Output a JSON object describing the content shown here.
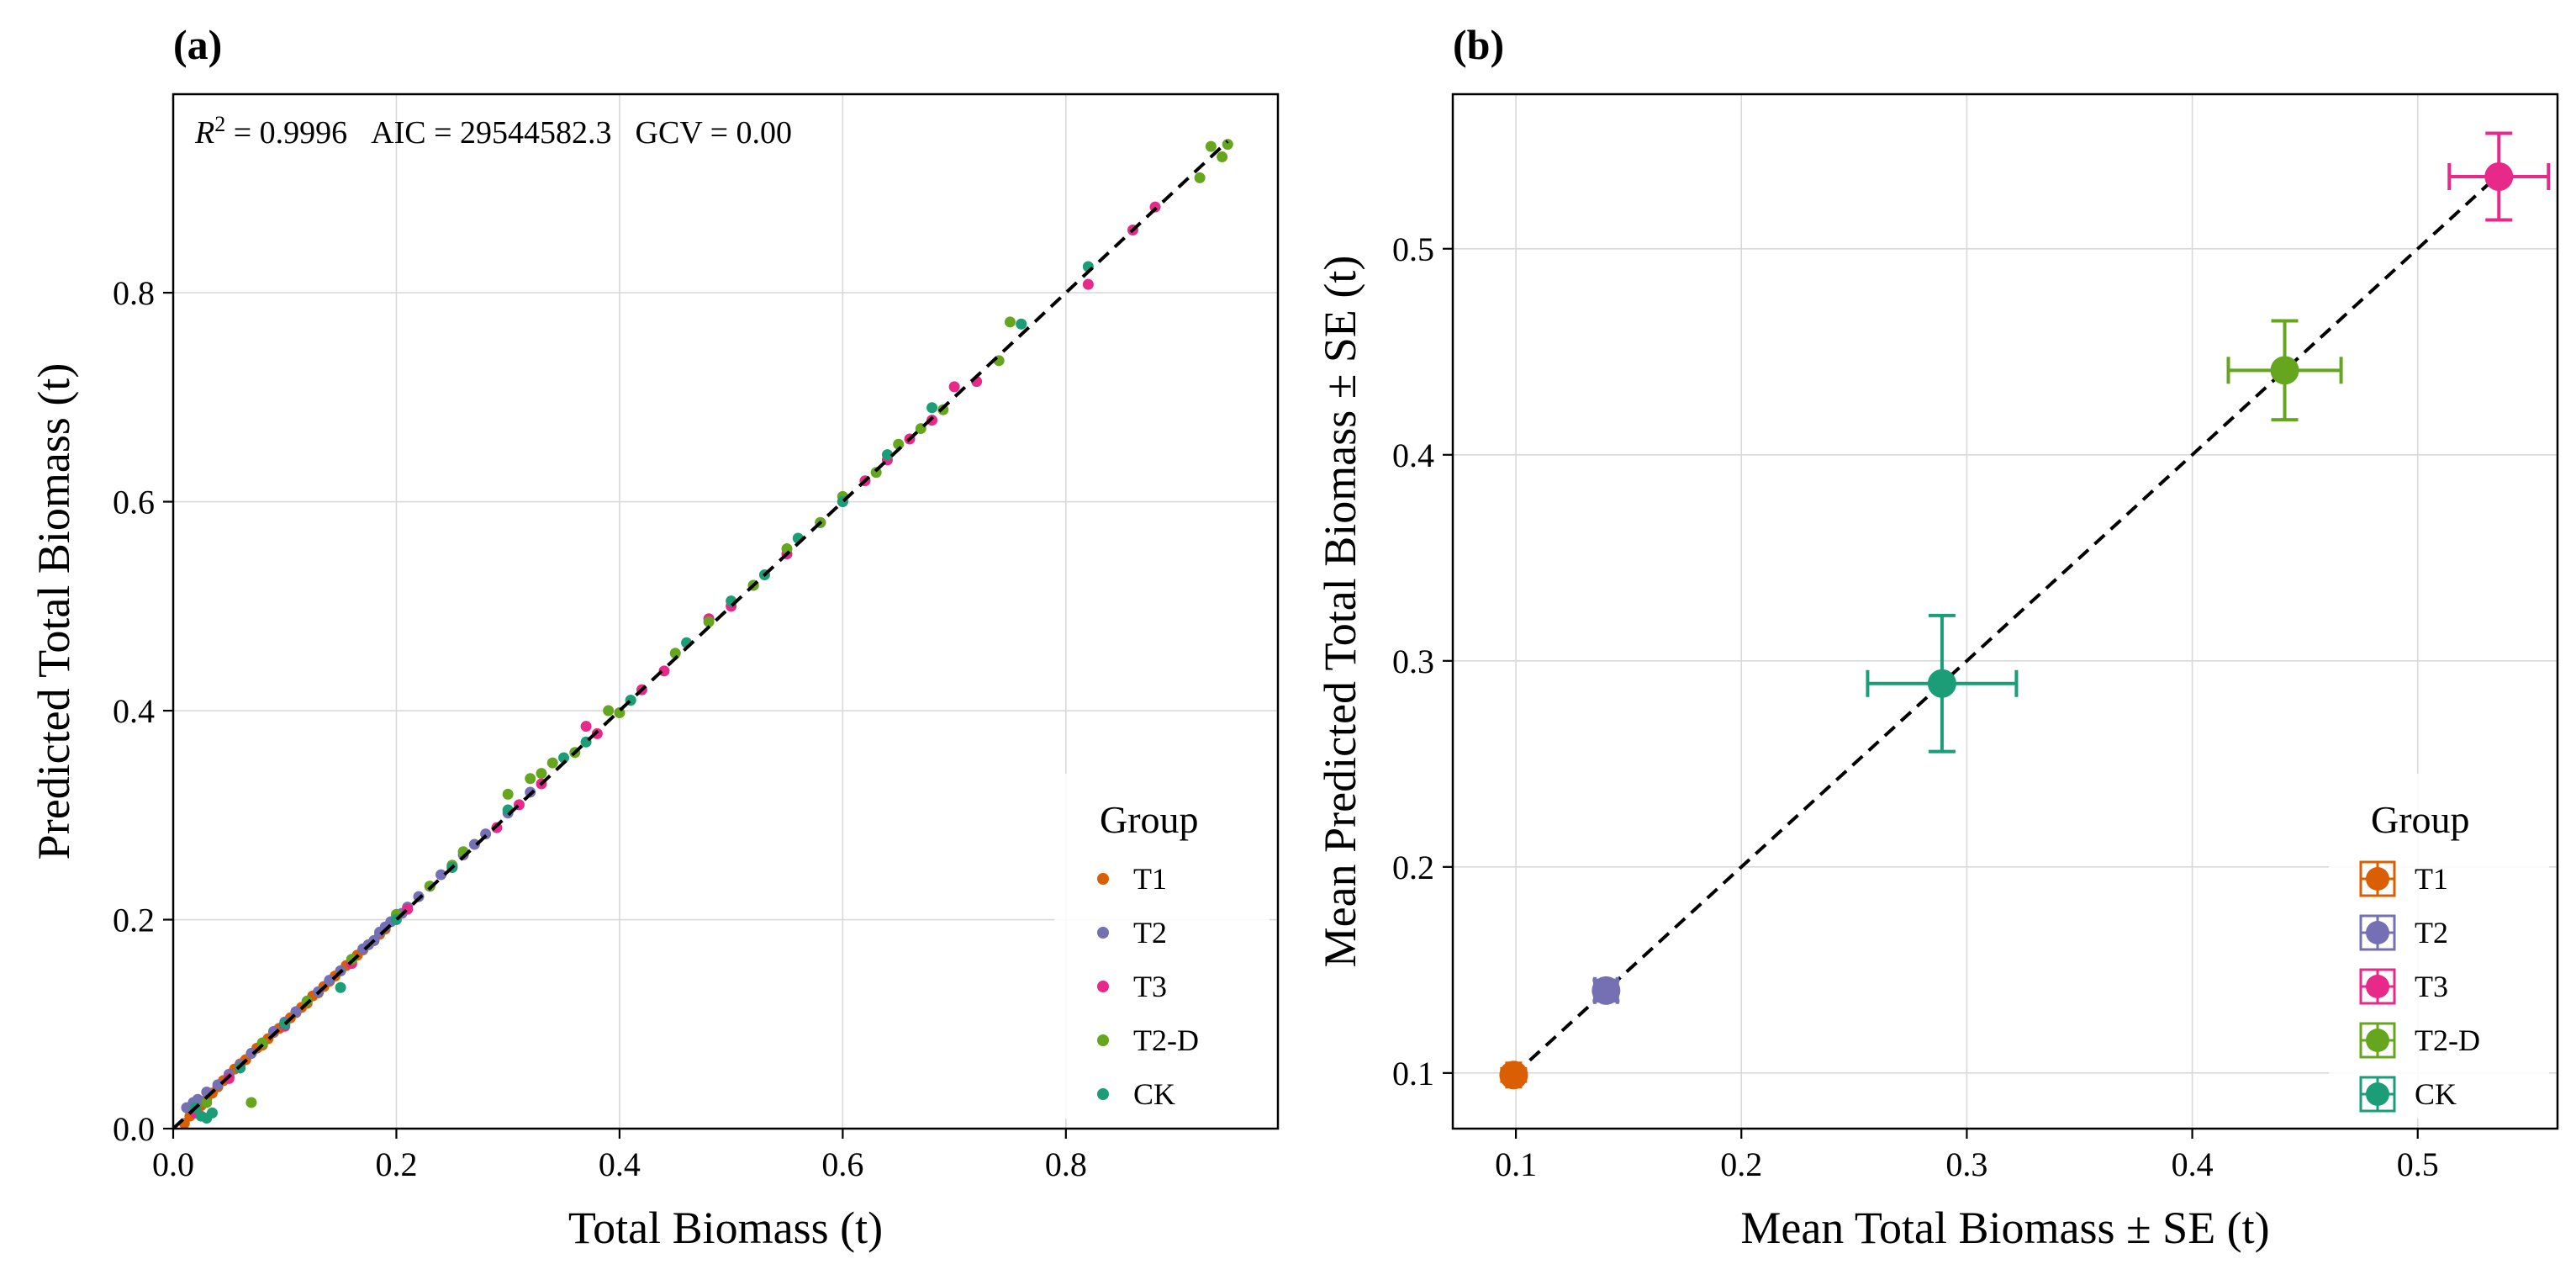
{
  "chart_data": [
    {
      "panel": "(a)",
      "type": "scatter",
      "title": "",
      "xlabel": "Total Biomass (t)",
      "ylabel": "Predicted Total Biomass (t)",
      "xlim": [
        0.0,
        0.99
      ],
      "ylim": [
        0.0,
        0.99
      ],
      "xticks": [
        0.0,
        0.2,
        0.4,
        0.6,
        0.8
      ],
      "yticks": [
        0.0,
        0.2,
        0.4,
        0.6,
        0.8
      ],
      "tick_labels_x": [
        "0.0",
        "0.2",
        "0.4",
        "0.6",
        "0.8"
      ],
      "tick_labels_y": [
        "0.0",
        "0.2",
        "0.4",
        "0.6",
        "0.8"
      ],
      "grid": true,
      "annotation": {
        "r2_symbol": "R",
        "r2_exponent": "2",
        "r2_value": " = 0.9996",
        "aic": "AIC = 29544582.3",
        "gcv": "GCV = 0.00"
      },
      "reference_line": [
        [
          0.0,
          0.0
        ],
        [
          0.945,
          0.945
        ]
      ],
      "legend": {
        "title": "Group",
        "placement": "lower-right"
      },
      "series": [
        {
          "name": "T1",
          "color": "#d95f02",
          "points": [
            [
              0.01,
              0.005
            ],
            [
              0.015,
              0.012
            ],
            [
              0.02,
              0.018
            ],
            [
              0.025,
              0.022
            ],
            [
              0.03,
              0.028
            ],
            [
              0.035,
              0.034
            ],
            [
              0.04,
              0.04
            ],
            [
              0.045,
              0.046
            ],
            [
              0.05,
              0.05
            ],
            [
              0.055,
              0.057
            ],
            [
              0.06,
              0.062
            ],
            [
              0.065,
              0.066
            ],
            [
              0.07,
              0.072
            ],
            [
              0.075,
              0.077
            ],
            [
              0.08,
              0.08
            ],
            [
              0.085,
              0.086
            ],
            [
              0.09,
              0.092
            ],
            [
              0.095,
              0.096
            ],
            [
              0.1,
              0.1
            ],
            [
              0.105,
              0.106
            ],
            [
              0.11,
              0.111
            ],
            [
              0.115,
              0.116
            ],
            [
              0.12,
              0.12
            ],
            [
              0.125,
              0.127
            ],
            [
              0.13,
              0.13
            ],
            [
              0.135,
              0.136
            ],
            [
              0.14,
              0.141
            ],
            [
              0.145,
              0.146
            ],
            [
              0.15,
              0.151
            ],
            [
              0.155,
              0.156
            ],
            [
              0.16,
              0.161
            ],
            [
              0.165,
              0.166
            ],
            [
              0.17,
              0.171
            ],
            [
              0.175,
              0.176
            ],
            [
              0.18,
              0.18
            ],
            [
              0.185,
              0.186
            ],
            [
              0.19,
              0.191
            ]
          ]
        },
        {
          "name": "T2",
          "color": "#7570b3",
          "points": [
            [
              0.012,
              0.02
            ],
            [
              0.018,
              0.025
            ],
            [
              0.022,
              0.028
            ],
            [
              0.03,
              0.035
            ],
            [
              0.04,
              0.042
            ],
            [
              0.05,
              0.052
            ],
            [
              0.06,
              0.061
            ],
            [
              0.07,
              0.072
            ],
            [
              0.08,
              0.082
            ],
            [
              0.09,
              0.093
            ],
            [
              0.1,
              0.102
            ],
            [
              0.11,
              0.112
            ],
            [
              0.12,
              0.122
            ],
            [
              0.13,
              0.131
            ],
            [
              0.14,
              0.142
            ],
            [
              0.15,
              0.151
            ],
            [
              0.16,
              0.162
            ],
            [
              0.17,
              0.172
            ],
            [
              0.175,
              0.176
            ],
            [
              0.18,
              0.18
            ],
            [
              0.185,
              0.188
            ],
            [
              0.19,
              0.193
            ],
            [
              0.195,
              0.198
            ],
            [
              0.2,
              0.203
            ],
            [
              0.205,
              0.206
            ],
            [
              0.21,
              0.212
            ],
            [
              0.22,
              0.222
            ],
            [
              0.23,
              0.232
            ],
            [
              0.24,
              0.243
            ],
            [
              0.25,
              0.252
            ],
            [
              0.26,
              0.262
            ],
            [
              0.27,
              0.272
            ],
            [
              0.28,
              0.282
            ],
            [
              0.3,
              0.302
            ],
            [
              0.32,
              0.322
            ]
          ]
        },
        {
          "name": "T3",
          "color": "#e7298a",
          "points": [
            [
              0.02,
              0.015
            ],
            [
              0.05,
              0.048
            ],
            [
              0.1,
              0.098
            ],
            [
              0.16,
              0.158
            ],
            [
              0.21,
              0.21
            ],
            [
              0.25,
              0.25
            ],
            [
              0.29,
              0.288
            ],
            [
              0.31,
              0.31
            ],
            [
              0.33,
              0.33
            ],
            [
              0.37,
              0.385
            ],
            [
              0.38,
              0.378
            ],
            [
              0.42,
              0.42
            ],
            [
              0.44,
              0.438
            ],
            [
              0.48,
              0.488
            ],
            [
              0.5,
              0.5
            ],
            [
              0.52,
              0.52
            ],
            [
              0.55,
              0.55
            ],
            [
              0.58,
              0.58
            ],
            [
              0.6,
              0.6
            ],
            [
              0.62,
              0.62
            ],
            [
              0.64,
              0.64
            ],
            [
              0.66,
              0.66
            ],
            [
              0.68,
              0.678
            ],
            [
              0.7,
              0.71
            ],
            [
              0.72,
              0.715
            ],
            [
              0.82,
              0.808
            ],
            [
              0.86,
              0.86
            ],
            [
              0.88,
              0.882
            ]
          ]
        },
        {
          "name": "T2-D",
          "color": "#66a61e",
          "points": [
            [
              0.03,
              0.025
            ],
            [
              0.07,
              0.025
            ],
            [
              0.08,
              0.082
            ],
            [
              0.12,
              0.122
            ],
            [
              0.16,
              0.162
            ],
            [
              0.2,
              0.205
            ],
            [
              0.23,
              0.232
            ],
            [
              0.25,
              0.252
            ],
            [
              0.26,
              0.265
            ],
            [
              0.3,
              0.32
            ],
            [
              0.32,
              0.335
            ],
            [
              0.33,
              0.34
            ],
            [
              0.34,
              0.35
            ],
            [
              0.36,
              0.36
            ],
            [
              0.39,
              0.4
            ],
            [
              0.4,
              0.398
            ],
            [
              0.41,
              0.41
            ],
            [
              0.45,
              0.455
            ],
            [
              0.48,
              0.485
            ],
            [
              0.52,
              0.52
            ],
            [
              0.55,
              0.555
            ],
            [
              0.58,
              0.58
            ],
            [
              0.6,
              0.605
            ],
            [
              0.63,
              0.628
            ],
            [
              0.65,
              0.655
            ],
            [
              0.67,
              0.67
            ],
            [
              0.69,
              0.688
            ],
            [
              0.74,
              0.735
            ],
            [
              0.75,
              0.772
            ],
            [
              0.76,
              0.77
            ],
            [
              0.92,
              0.91
            ],
            [
              0.93,
              0.94
            ],
            [
              0.94,
              0.93
            ],
            [
              0.945,
              0.942
            ]
          ]
        },
        {
          "name": "CK",
          "color": "#1b9e77",
          "points": [
            [
              0.02,
              0.02
            ],
            [
              0.025,
              0.012
            ],
            [
              0.03,
              0.01
            ],
            [
              0.035,
              0.015
            ],
            [
              0.06,
              0.058
            ],
            [
              0.1,
              0.1
            ],
            [
              0.15,
              0.135
            ],
            [
              0.2,
              0.2
            ],
            [
              0.25,
              0.25
            ],
            [
              0.3,
              0.305
            ],
            [
              0.35,
              0.355
            ],
            [
              0.37,
              0.37
            ],
            [
              0.41,
              0.41
            ],
            [
              0.46,
              0.465
            ],
            [
              0.5,
              0.505
            ],
            [
              0.53,
              0.53
            ],
            [
              0.56,
              0.565
            ],
            [
              0.6,
              0.6
            ],
            [
              0.64,
              0.645
            ],
            [
              0.68,
              0.69
            ],
            [
              0.76,
              0.77
            ],
            [
              0.82,
              0.825
            ]
          ]
        }
      ]
    },
    {
      "panel": "(b)",
      "type": "scatter",
      "title": "",
      "xlabel": "Mean Total Biomass ± SE (t)",
      "ylabel": "Mean Predicted Total Biomass ± SE (t)",
      "xlim": [
        0.072,
        0.562
      ],
      "ylim": [
        0.073,
        0.575
      ],
      "xticks": [
        0.1,
        0.2,
        0.3,
        0.4,
        0.5
      ],
      "yticks": [
        0.1,
        0.2,
        0.3,
        0.4,
        0.5
      ],
      "tick_labels_x": [
        "0.1",
        "0.2",
        "0.3",
        "0.4",
        "0.5"
      ],
      "tick_labels_y": [
        "0.1",
        "0.2",
        "0.3",
        "0.4",
        "0.5"
      ],
      "grid": true,
      "reference_line": [
        [
          0.099,
          0.099
        ],
        [
          0.536,
          0.536
        ]
      ],
      "legend": {
        "title": "Group",
        "placement": "lower-right"
      },
      "series": [
        {
          "name": "T1",
          "color": "#d95f02",
          "x": 0.099,
          "y": 0.099,
          "x_se": 0.003,
          "y_se": 0.003
        },
        {
          "name": "T2",
          "color": "#7570b3",
          "x": 0.14,
          "y": 0.14,
          "x_se": 0.005,
          "y_se": 0.005
        },
        {
          "name": "T3",
          "color": "#e7298a",
          "x": 0.536,
          "y": 0.535,
          "x_se": 0.022,
          "y_se": 0.021
        },
        {
          "name": "T2-D",
          "color": "#66a61e",
          "x": 0.441,
          "y": 0.441,
          "x_se": 0.025,
          "y_se": 0.024
        },
        {
          "name": "CK",
          "color": "#1b9e77",
          "x": 0.289,
          "y": 0.289,
          "x_se": 0.033,
          "y_se": 0.033
        }
      ]
    }
  ]
}
